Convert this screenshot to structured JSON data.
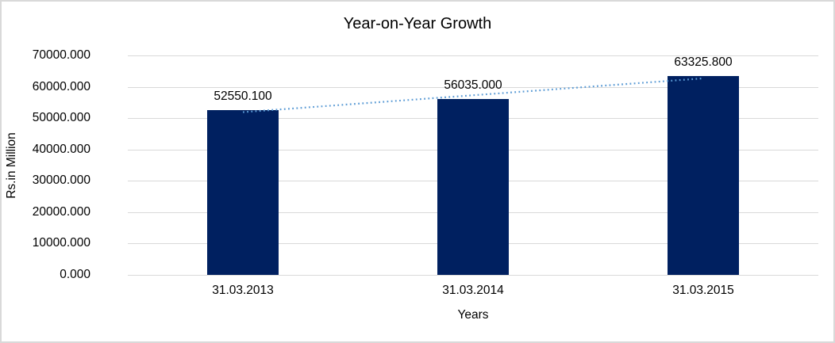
{
  "chart_data": {
    "type": "bar",
    "title": "Year-on-Year Growth",
    "xlabel": "Years",
    "ylabel": "Rs.in Million",
    "categories": [
      "31.03.2013",
      "31.03.2014",
      "31.03.2015"
    ],
    "values": [
      52550.1,
      56035.0,
      63325.8
    ],
    "data_labels": [
      "52550.100",
      "56035.000",
      "63325.800"
    ],
    "ylim": [
      0,
      70000
    ],
    "ytick_step": 10000,
    "ytick_labels": [
      "0.000",
      "10000.000",
      "20000.000",
      "30000.000",
      "40000.000",
      "50000.000",
      "60000.000",
      "70000.000"
    ],
    "grid": true,
    "legend": "none",
    "trendline": {
      "type": "linear",
      "style": "dotted"
    }
  },
  "colors": {
    "bar": "#002060",
    "trendline": "#5b9bd5",
    "gridline": "#d9d9d9",
    "text": "#000000",
    "frame_border": "#d9d9d9",
    "background": "#ffffff"
  }
}
